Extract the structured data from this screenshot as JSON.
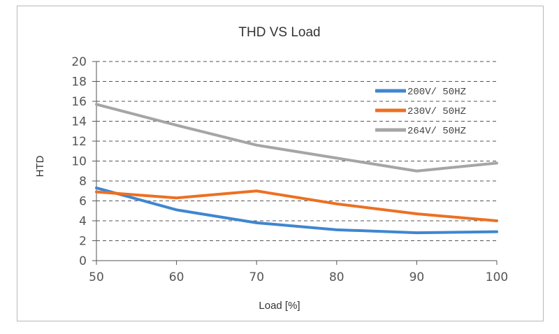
{
  "chart_data": {
    "type": "line",
    "title": "THD VS Load",
    "xlabel": "Load [%]",
    "ylabel": "HTD",
    "x": [
      50,
      60,
      70,
      80,
      90,
      100
    ],
    "xlim": [
      50,
      100
    ],
    "ylim": [
      0,
      20
    ],
    "xticks": [
      "50",
      "60",
      "70",
      "80",
      "90",
      "100"
    ],
    "yticks": [
      "0",
      "2",
      "4",
      "6",
      "8",
      "10",
      "12",
      "14",
      "16",
      "18",
      "20"
    ],
    "grid": "horizontal dashed",
    "legend_position": "top-right",
    "series": [
      {
        "name": "200V/ 50HZ",
        "color": "#3f86d0",
        "values": [
          7.3,
          5.1,
          3.8,
          3.1,
          2.8,
          2.9
        ]
      },
      {
        "name": "230V/ 50HZ",
        "color": "#ec7022",
        "values": [
          6.9,
          6.3,
          7.0,
          5.7,
          4.7,
          4.0
        ]
      },
      {
        "name": "264V/ 50HZ",
        "color": "#a5a5a5",
        "values": [
          15.7,
          13.6,
          11.6,
          10.3,
          9.0,
          9.8
        ]
      }
    ]
  }
}
